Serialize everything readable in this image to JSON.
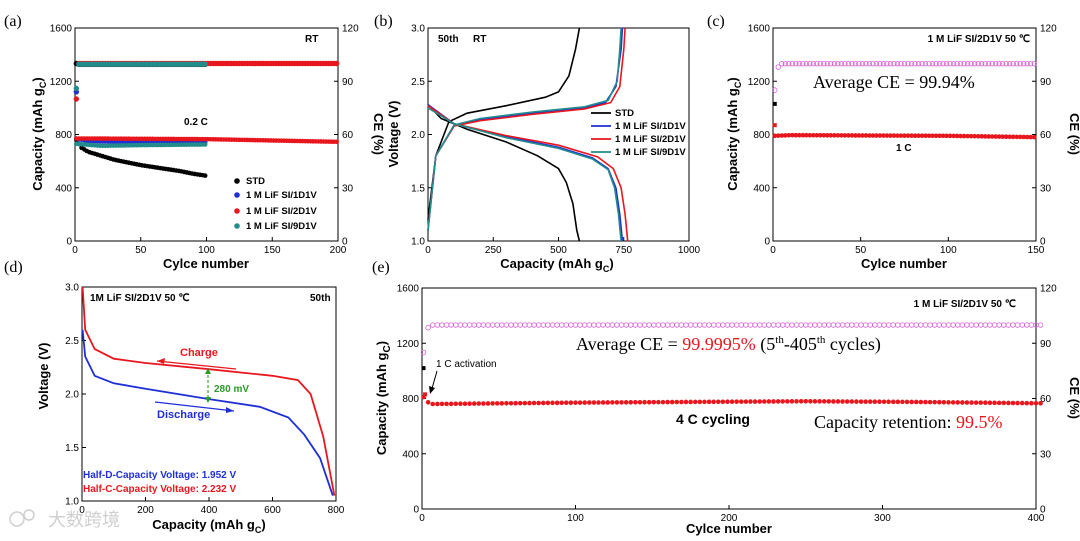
{
  "chart_data": [
    {
      "id": "a",
      "type": "scatter",
      "panel_label": "(a)",
      "xlabel": "Cylce number",
      "ylabel_main": "Capacity (mAh g",
      "ylabel_sub": "C",
      "ylabel_end": ")",
      "y2label": "CE (%)",
      "xlim": [
        0,
        200
      ],
      "ylim": [
        0,
        1600
      ],
      "y2lim": [
        0,
        120
      ],
      "xticks": [
        "0",
        "50",
        "100",
        "150",
        "200"
      ],
      "yticks": [
        "0",
        "400",
        "800",
        "1200",
        "1600"
      ],
      "y2ticks": [
        "0",
        "30",
        "60",
        "90",
        "120"
      ],
      "annotations": [
        "RT",
        "0.2 C"
      ],
      "legend": [
        "STD",
        "1 M LiF SI/1D1V",
        "1 M LiF SI/2D1V",
        "1 M LiF SI/9D1V"
      ],
      "series": [
        {
          "name": "STD",
          "color": "#000000",
          "x_end": 100,
          "capacity": [
            [
              1,
              760
            ],
            [
              5,
              700
            ],
            [
              10,
              670
            ],
            [
              20,
              640
            ],
            [
              30,
              610
            ],
            [
              40,
              590
            ],
            [
              50,
              570
            ],
            [
              60,
              555
            ],
            [
              70,
              540
            ],
            [
              80,
              525
            ],
            [
              90,
              505
            ],
            [
              100,
              490
            ]
          ],
          "ce": [
            [
              1,
              100
            ],
            [
              3,
              99.5
            ],
            [
              100,
              99.5
            ]
          ]
        },
        {
          "name": "1 M LiF SI/1D1V",
          "color": "#1f2fd6",
          "x_end": 100,
          "capacity": [
            [
              1,
              770
            ],
            [
              10,
              750
            ],
            [
              50,
              745
            ],
            [
              100,
              740
            ]
          ],
          "ce": [
            [
              1,
              84
            ],
            [
              3,
              99.8
            ],
            [
              100,
              99.8
            ]
          ]
        },
        {
          "name": "1 M LiF SI/2D1V",
          "color": "#e8171d",
          "x_end": 200,
          "capacity": [
            [
              1,
              770
            ],
            [
              10,
              770
            ],
            [
              100,
              765
            ],
            [
              150,
              755
            ],
            [
              200,
              745
            ]
          ],
          "ce": [
            [
              1,
              80
            ],
            [
              3,
              100
            ],
            [
              200,
              100
            ]
          ]
        },
        {
          "name": "1 M LiF SI/9D1V",
          "color": "#238c8c",
          "x_end": 100,
          "capacity": [
            [
              1,
              730
            ],
            [
              20,
              715
            ],
            [
              50,
              720
            ],
            [
              100,
              725
            ]
          ],
          "ce": [
            [
              1,
              86
            ],
            [
              3,
              99.6
            ],
            [
              100,
              99.6
            ]
          ]
        }
      ]
    },
    {
      "id": "b",
      "type": "line",
      "panel_label": "(b)",
      "xlabel_main": "Capacity (mAh g",
      "xlabel_sub": "C",
      "xlabel_end": ")",
      "ylabel": "Voltage (V)",
      "xlim": [
        0,
        1000
      ],
      "ylim": [
        1.0,
        3.0
      ],
      "xticks": [
        "0",
        "250",
        "500",
        "750",
        "1000"
      ],
      "yticks": [
        "1.0",
        "1.5",
        "2.0",
        "2.5",
        "3.0"
      ],
      "annotations": [
        "50th",
        "RT"
      ],
      "legend": [
        "STD",
        "1 M LiF SI/1D1V",
        "1 M LiF SI/2D1V",
        "1 M LiF SI/9D1V"
      ],
      "series": [
        {
          "name": "STD",
          "color": "#000000",
          "charge": [
            [
              0,
              1.2
            ],
            [
              30,
              1.8
            ],
            [
              80,
              2.12
            ],
            [
              150,
              2.2
            ],
            [
              300,
              2.27
            ],
            [
              450,
              2.35
            ],
            [
              500,
              2.4
            ],
            [
              540,
              2.55
            ],
            [
              565,
              2.8
            ],
            [
              580,
              3.0
            ]
          ],
          "discharge": [
            [
              0,
              2.28
            ],
            [
              50,
              2.15
            ],
            [
              150,
              2.05
            ],
            [
              300,
              1.93
            ],
            [
              420,
              1.8
            ],
            [
              500,
              1.68
            ],
            [
              530,
              1.55
            ],
            [
              555,
              1.35
            ],
            [
              570,
              1.1
            ],
            [
              580,
              1.0
            ]
          ]
        },
        {
          "name": "1 M LiF SI/1D1V",
          "color": "#1f2fd6",
          "charge": [
            [
              0,
              1.1
            ],
            [
              30,
              1.8
            ],
            [
              100,
              2.08
            ],
            [
              200,
              2.14
            ],
            [
              400,
              2.2
            ],
            [
              600,
              2.25
            ],
            [
              680,
              2.3
            ],
            [
              720,
              2.45
            ],
            [
              740,
              2.8
            ],
            [
              745,
              3.0
            ]
          ],
          "discharge": [
            [
              0,
              2.28
            ],
            [
              100,
              2.1
            ],
            [
              300,
              1.98
            ],
            [
              500,
              1.88
            ],
            [
              630,
              1.78
            ],
            [
              690,
              1.68
            ],
            [
              720,
              1.5
            ],
            [
              735,
              1.25
            ],
            [
              745,
              1.0
            ]
          ]
        },
        {
          "name": "1 M LiF SI/2D1V",
          "color": "#e8171d",
          "charge": [
            [
              0,
              1.1
            ],
            [
              30,
              1.8
            ],
            [
              100,
              2.08
            ],
            [
              200,
              2.13
            ],
            [
              400,
              2.19
            ],
            [
              600,
              2.24
            ],
            [
              700,
              2.3
            ],
            [
              735,
              2.45
            ],
            [
              750,
              2.8
            ],
            [
              755,
              3.0
            ]
          ],
          "discharge": [
            [
              0,
              2.27
            ],
            [
              100,
              2.1
            ],
            [
              300,
              1.99
            ],
            [
              500,
              1.9
            ],
            [
              650,
              1.79
            ],
            [
              710,
              1.68
            ],
            [
              740,
              1.5
            ],
            [
              755,
              1.25
            ],
            [
              765,
              1.0
            ]
          ]
        },
        {
          "name": "1 M LiF SI/9D1V",
          "color": "#238c8c",
          "charge": [
            [
              0,
              1.1
            ],
            [
              30,
              1.8
            ],
            [
              100,
              2.09
            ],
            [
              200,
              2.15
            ],
            [
              400,
              2.21
            ],
            [
              600,
              2.26
            ],
            [
              690,
              2.32
            ],
            [
              725,
              2.5
            ],
            [
              735,
              2.8
            ],
            [
              740,
              3.0
            ]
          ],
          "discharge": [
            [
              0,
              2.25
            ],
            [
              100,
              2.1
            ],
            [
              300,
              1.97
            ],
            [
              500,
              1.87
            ],
            [
              630,
              1.77
            ],
            [
              690,
              1.67
            ],
            [
              715,
              1.5
            ],
            [
              730,
              1.25
            ],
            [
              740,
              1.0
            ]
          ]
        }
      ]
    },
    {
      "id": "c",
      "type": "scatter",
      "panel_label": "(c)",
      "xlabel": "Cylce number",
      "ylabel_main": "Capacity (mAh g",
      "ylabel_sub": "C",
      "ylabel_end": ")",
      "y2label": "CE (%)",
      "xlim": [
        0,
        150
      ],
      "ylim": [
        0,
        1600
      ],
      "y2lim": [
        0,
        120
      ],
      "xticks": [
        "0",
        "50",
        "100",
        "150"
      ],
      "yticks": [
        "0",
        "400",
        "800",
        "1200",
        "1600"
      ],
      "y2ticks": [
        "0",
        "30",
        "60",
        "90",
        "120"
      ],
      "annotations": [
        "1 M LiF SI/2D1V   50 ℃",
        "Average CE = 99.94%",
        "1 C"
      ],
      "series": [
        {
          "name": "capacity",
          "color": "#e8171d",
          "x_end": 150,
          "capacity": [
            [
              1,
              790
            ],
            [
              10,
              795
            ],
            [
              100,
              790
            ],
            [
              150,
              780
            ]
          ],
          "early": [
            [
              1,
              1030
            ],
            [
              1,
              870
            ]
          ]
        },
        {
          "name": "CE",
          "color": "#d65fd6",
          "x_end": 150,
          "ce": [
            [
              1,
              85
            ],
            [
              3,
              98
            ],
            [
              5,
              99.9
            ],
            [
              150,
              99.9
            ]
          ]
        }
      ]
    },
    {
      "id": "d",
      "type": "line",
      "panel_label": "(d)",
      "xlabel_main": "Capacity (mAh g",
      "xlabel_sub": "C",
      "xlabel_end": ")",
      "ylabel": "Voltage (V)",
      "xlim": [
        0,
        800
      ],
      "ylim": [
        1.0,
        3.0
      ],
      "xticks": [
        "0",
        "200",
        "400",
        "600",
        "800"
      ],
      "yticks": [
        "1.0",
        "1.5",
        "2.0",
        "2.5",
        "3.0"
      ],
      "annotations": [
        "1M LiF SI/2D1V  50 ℃",
        "50th",
        "Charge",
        "Discharge",
        "280 mV",
        "Half-D-Capacity Voltage: 1.952 V",
        "Half-C-Capacity Voltage: 2.232 V"
      ],
      "series": [
        {
          "name": "Charge",
          "color": "#e8171d",
          "points": [
            [
              2,
              3.0
            ],
            [
              10,
              2.6
            ],
            [
              40,
              2.42
            ],
            [
              100,
              2.33
            ],
            [
              200,
              2.29
            ],
            [
              400,
              2.232
            ],
            [
              600,
              2.17
            ],
            [
              680,
              2.13
            ],
            [
              720,
              2.0
            ],
            [
              760,
              1.6
            ],
            [
              795,
              1.05
            ]
          ]
        },
        {
          "name": "Discharge",
          "color": "#1f2fd6",
          "points": [
            [
              2,
              2.6
            ],
            [
              10,
              2.35
            ],
            [
              40,
              2.17
            ],
            [
              100,
              2.1
            ],
            [
              200,
              2.05
            ],
            [
              400,
              1.952
            ],
            [
              560,
              1.88
            ],
            [
              650,
              1.78
            ],
            [
              700,
              1.62
            ],
            [
              750,
              1.4
            ],
            [
              790,
              1.05
            ]
          ]
        }
      ]
    },
    {
      "id": "e",
      "type": "scatter",
      "panel_label": "(e)",
      "xlabel": "Cylce number",
      "ylabel_main": "Capacity (mAh g",
      "ylabel_sub": "C",
      "ylabel_end": ")",
      "y2label": "CE (%)",
      "xlim": [
        0,
        400
      ],
      "ylim": [
        0,
        1600
      ],
      "y2lim": [
        0,
        120
      ],
      "xticks": [
        "0",
        "100",
        "200",
        "300",
        "400"
      ],
      "yticks": [
        "0",
        "400",
        "800",
        "1200",
        "1600"
      ],
      "y2ticks": [
        "0",
        "30",
        "60",
        "90",
        "120"
      ],
      "annotations": [
        "1 M LiF SI/2D1V   50 ℃",
        "1 C activation",
        "4 C cycling"
      ],
      "ce_text": {
        "prefix": "Average CE = ",
        "value": "99.9995%",
        "mid": " (5",
        "sup1": "th",
        "dash": "-405",
        "sup2": "th",
        "suffix": " cycles)"
      },
      "retention_text": {
        "prefix": "Capacity retention:  ",
        "value": "99.5%"
      },
      "series": [
        {
          "name": "capacity",
          "color": "#e8171d",
          "x_end": 405,
          "capacity": [
            [
              1,
              810
            ],
            [
              5,
              760
            ],
            [
              100,
              770
            ],
            [
              250,
              780
            ],
            [
              320,
              775
            ],
            [
              405,
              765
            ]
          ],
          "early": [
            [
              1,
              1020
            ],
            [
              2,
              830
            ]
          ]
        },
        {
          "name": "CE",
          "color": "#d65fd6",
          "x_end": 405,
          "ce": [
            [
              1,
              85
            ],
            [
              3,
              97
            ],
            [
              5,
              99.9
            ],
            [
              405,
              99.9
            ]
          ]
        }
      ]
    }
  ],
  "watermark": "大数跨境"
}
